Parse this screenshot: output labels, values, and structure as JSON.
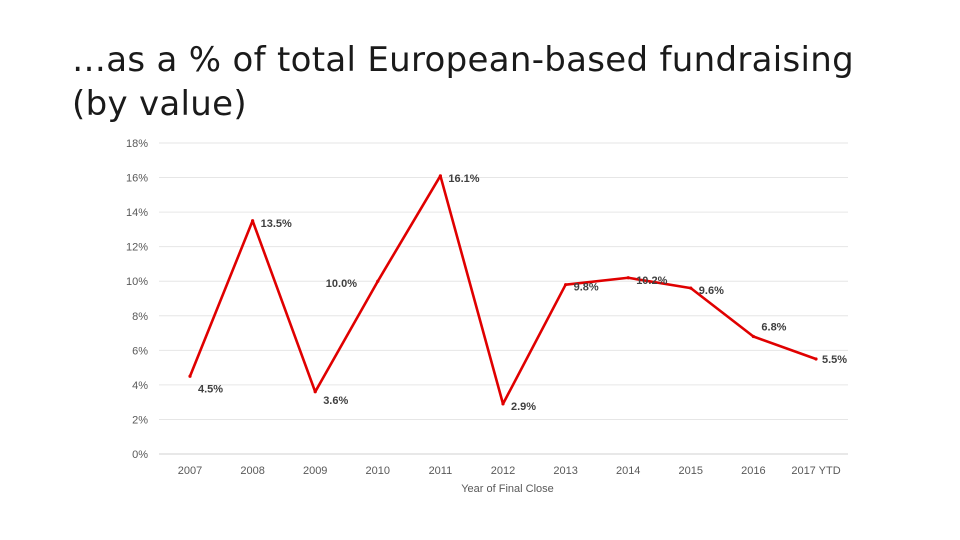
{
  "slide": {
    "title": "…as a % of total European-based fundraising (by value)"
  },
  "chart_data": {
    "type": "line",
    "title": "",
    "xlabel": "Year of Final Close",
    "ylabel": "",
    "ylim": [
      0,
      18
    ],
    "yticks": [
      0,
      2,
      4,
      6,
      8,
      10,
      12,
      14,
      16,
      18
    ],
    "ytick_labels": [
      "0%",
      "2%",
      "4%",
      "6%",
      "8%",
      "10%",
      "12%",
      "14%",
      "16%",
      "18%"
    ],
    "grid": true,
    "legend": "none",
    "line_color": "#e00000",
    "categories": [
      "2007",
      "2008",
      "2009",
      "2010",
      "2011",
      "2012",
      "2013",
      "2014",
      "2015",
      "2016",
      "2017 YTD"
    ],
    "series": [
      {
        "name": "% of total European-based fundraising",
        "values": [
          4.5,
          13.5,
          3.6,
          10.0,
          16.1,
          2.9,
          9.8,
          10.2,
          9.6,
          6.8,
          5.5
        ],
        "labels": [
          "4.5%",
          "13.5%",
          "3.6%",
          "10.0%",
          "16.1%",
          "2.9%",
          "9.8%",
          "10.2%",
          "9.6%",
          "6.8%",
          "5.5%"
        ]
      }
    ]
  }
}
